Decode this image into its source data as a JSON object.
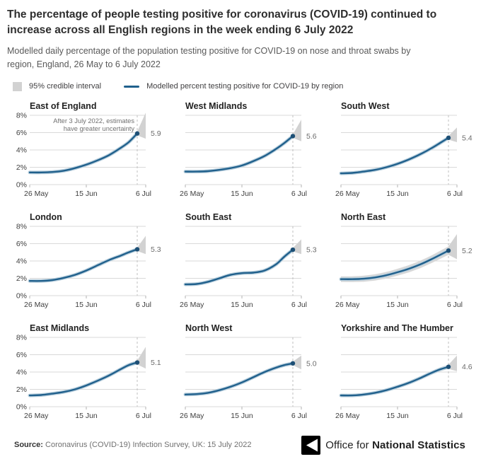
{
  "header": {
    "title": "The percentage of people testing positive for coronavirus (COVID-19) continued to increase across all English regions in the week ending 6 July 2022",
    "subtitle": "Modelled daily percentage of the population testing positive for COVID-19 on nose and throat swabs by region, England, 26 May to 6 July 2022"
  },
  "legend": {
    "band_label": "95% credible interval",
    "line_label": "Modelled percent testing positive for COVID-19 by region"
  },
  "annotation": {
    "line1": "After 3 July 2022, estimates",
    "line2": "have greater uncertainty"
  },
  "footer": {
    "source_label": "Source:",
    "source_text": " Coronavirus (COVID-19) Infection Survey, UK: 15 July 2022",
    "logo_text_light": "Office for ",
    "logo_text_bold": "National Statistics"
  },
  "colors": {
    "line": "#20608C",
    "line_halo": "#b9cfdd",
    "dot": "#1d4f75",
    "band": "#d8d8d8",
    "fan": "#d2d2d2",
    "grid": "#d9d9d9",
    "dashed": "#bfbfbf",
    "tick": "#b3b3b3"
  },
  "chart_data": {
    "type": "line",
    "small_multiples": true,
    "title": "Modelled daily percentage testing positive for COVID-19 by region, England",
    "x_unit": "days since 26 May 2022",
    "x_range": [
      0,
      41
    ],
    "x_ticks": [
      {
        "day": 0,
        "label": "26 May"
      },
      {
        "day": 20,
        "label": "15 Jun"
      },
      {
        "day": 41,
        "label": "6 Jul"
      }
    ],
    "y_ticks": [
      {
        "value": 0,
        "label": "0%"
      },
      {
        "value": 2,
        "label": "2%"
      },
      {
        "value": 4,
        "label": "4%"
      },
      {
        "value": 6,
        "label": "6%"
      },
      {
        "value": 8,
        "label": "8%"
      }
    ],
    "ylim": [
      0,
      8
    ],
    "grid": true,
    "uncertainty_start_day": 38,
    "sample_days": [
      0,
      4,
      8,
      12,
      16,
      20,
      24,
      28,
      32,
      35,
      38
    ],
    "panels": [
      {
        "region": "East of England",
        "values": [
          1.4,
          1.4,
          1.45,
          1.6,
          1.9,
          2.3,
          2.8,
          3.4,
          4.2,
          4.9,
          5.9
        ],
        "end_label": "5.9",
        "band_halfwidth": [
          0.12,
          0.22
        ],
        "fan_top": 8.3,
        "fan_bottom": 5.3,
        "annotation": true
      },
      {
        "region": "West Midlands",
        "values": [
          1.5,
          1.5,
          1.55,
          1.7,
          1.9,
          2.2,
          2.7,
          3.3,
          4.1,
          4.8,
          5.6
        ],
        "end_label": "5.6",
        "band_halfwidth": [
          0.12,
          0.2
        ],
        "fan_top": 7.5,
        "fan_bottom": 5.0,
        "annotation": false
      },
      {
        "region": "South West",
        "values": [
          1.3,
          1.35,
          1.5,
          1.7,
          2.0,
          2.4,
          2.9,
          3.5,
          4.2,
          4.8,
          5.4
        ],
        "end_label": "5.4",
        "band_halfwidth": [
          0.13,
          0.22
        ],
        "fan_top": 6.6,
        "fan_bottom": 4.9,
        "annotation": false
      },
      {
        "region": "London",
        "values": [
          1.7,
          1.7,
          1.8,
          2.05,
          2.4,
          2.9,
          3.5,
          4.1,
          4.6,
          5.0,
          5.35
        ],
        "end_label": "5.3",
        "band_halfwidth": [
          0.12,
          0.2
        ],
        "fan_top": 6.9,
        "fan_bottom": 4.8,
        "annotation": false
      },
      {
        "region": "South East",
        "values": [
          1.3,
          1.35,
          1.6,
          2.0,
          2.4,
          2.6,
          2.65,
          2.9,
          3.6,
          4.5,
          5.3
        ],
        "end_label": "5.3",
        "band_halfwidth": [
          0.12,
          0.2
        ],
        "fan_top": 6.5,
        "fan_bottom": 4.8,
        "annotation": false
      },
      {
        "region": "North East",
        "values": [
          1.9,
          1.9,
          1.95,
          2.1,
          2.35,
          2.7,
          3.1,
          3.6,
          4.2,
          4.7,
          5.2
        ],
        "end_label": "5.2",
        "band_halfwidth": [
          0.32,
          0.48
        ],
        "fan_top": 7.1,
        "fan_bottom": 4.2,
        "annotation": false
      },
      {
        "region": "East Midlands",
        "values": [
          1.3,
          1.35,
          1.5,
          1.7,
          2.0,
          2.45,
          3.0,
          3.6,
          4.3,
          4.8,
          5.1
        ],
        "end_label": "5.1",
        "band_halfwidth": [
          0.13,
          0.22
        ],
        "fan_top": 6.9,
        "fan_bottom": 4.4,
        "annotation": false
      },
      {
        "region": "North West",
        "values": [
          1.4,
          1.45,
          1.6,
          1.9,
          2.3,
          2.8,
          3.4,
          4.0,
          4.5,
          4.8,
          5.0
        ],
        "end_label": "5.0",
        "band_halfwidth": [
          0.12,
          0.2
        ],
        "fan_top": 5.9,
        "fan_bottom": 4.3,
        "annotation": false
      },
      {
        "region": "Yorkshire and The Humber",
        "values": [
          1.3,
          1.3,
          1.4,
          1.6,
          1.9,
          2.3,
          2.75,
          3.3,
          3.9,
          4.3,
          4.6
        ],
        "end_label": "4.6",
        "band_halfwidth": [
          0.13,
          0.24
        ],
        "fan_top": 5.9,
        "fan_bottom": 4.1,
        "annotation": false
      }
    ]
  }
}
